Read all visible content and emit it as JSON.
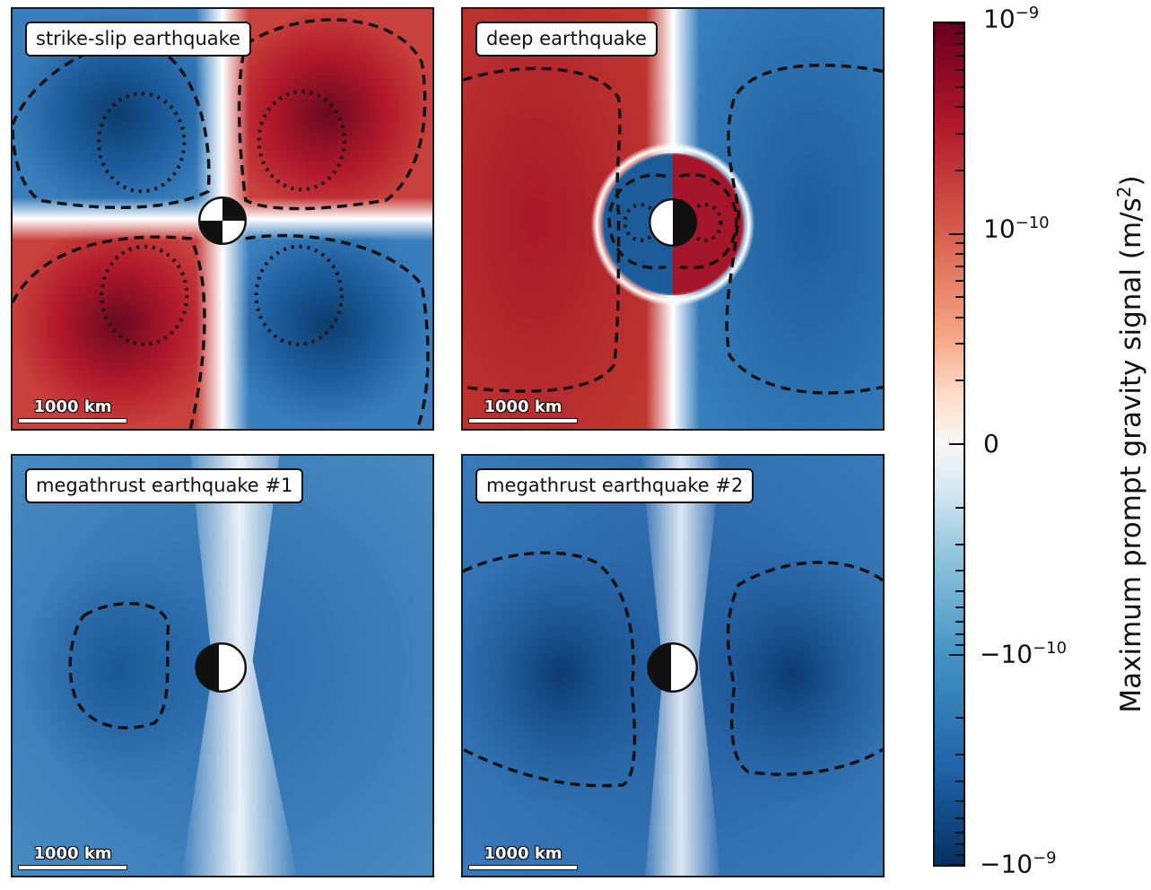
{
  "chart_data": [
    {
      "type": "heatmap",
      "title": "strike-slip earthquake",
      "scale_bar": "1000 km",
      "pattern": "four-lobe quadrant",
      "lobes": [
        {
          "quadrant": "top-left",
          "sign": "negative"
        },
        {
          "quadrant": "top-right",
          "sign": "positive"
        },
        {
          "quadrant": "bottom-left",
          "sign": "positive"
        },
        {
          "quadrant": "bottom-right",
          "sign": "negative"
        }
      ]
    },
    {
      "type": "heatmap",
      "title": "deep earthquake",
      "scale_bar": "1000 km",
      "pattern": "two-lobe with inner reversed ring",
      "lobes": [
        {
          "side": "left",
          "sign": "positive"
        },
        {
          "side": "right",
          "sign": "negative"
        },
        {
          "side": "inner-left",
          "sign": "negative"
        },
        {
          "side": "inner-right",
          "sign": "positive"
        }
      ]
    },
    {
      "type": "heatmap",
      "title": "megathrust earthquake #1",
      "scale_bar": "1000 km",
      "pattern": "negative everywhere, near-zero vertical band",
      "lobes": [
        {
          "side": "left",
          "sign": "negative"
        }
      ]
    },
    {
      "type": "heatmap",
      "title": "megathrust earthquake #2",
      "scale_bar": "1000 km",
      "pattern": "negative everywhere, near-zero vertical band",
      "lobes": [
        {
          "side": "left",
          "sign": "negative"
        },
        {
          "side": "right",
          "sign": "negative"
        }
      ]
    }
  ],
  "colorbar": {
    "label_main": "Maximum prompt gravity signal (m/s",
    "label_exp": "2",
    "label_close": ")",
    "ticks": [
      {
        "base": "10",
        "exp": "−9",
        "value": 1e-09
      },
      {
        "base": "10",
        "exp": "−10",
        "value": 1e-10
      },
      {
        "base": "0",
        "exp": "",
        "value": 0
      },
      {
        "base": "−10",
        "exp": "−10",
        "value": -1e-10
      },
      {
        "base": "−10",
        "exp": "−9",
        "value": -1e-09
      }
    ],
    "colors": {
      "pos_max": "#67001f",
      "pos": "#b2182b",
      "zero": "#f7f7f7",
      "neg": "#2166ac",
      "neg_max": "#053061"
    }
  }
}
